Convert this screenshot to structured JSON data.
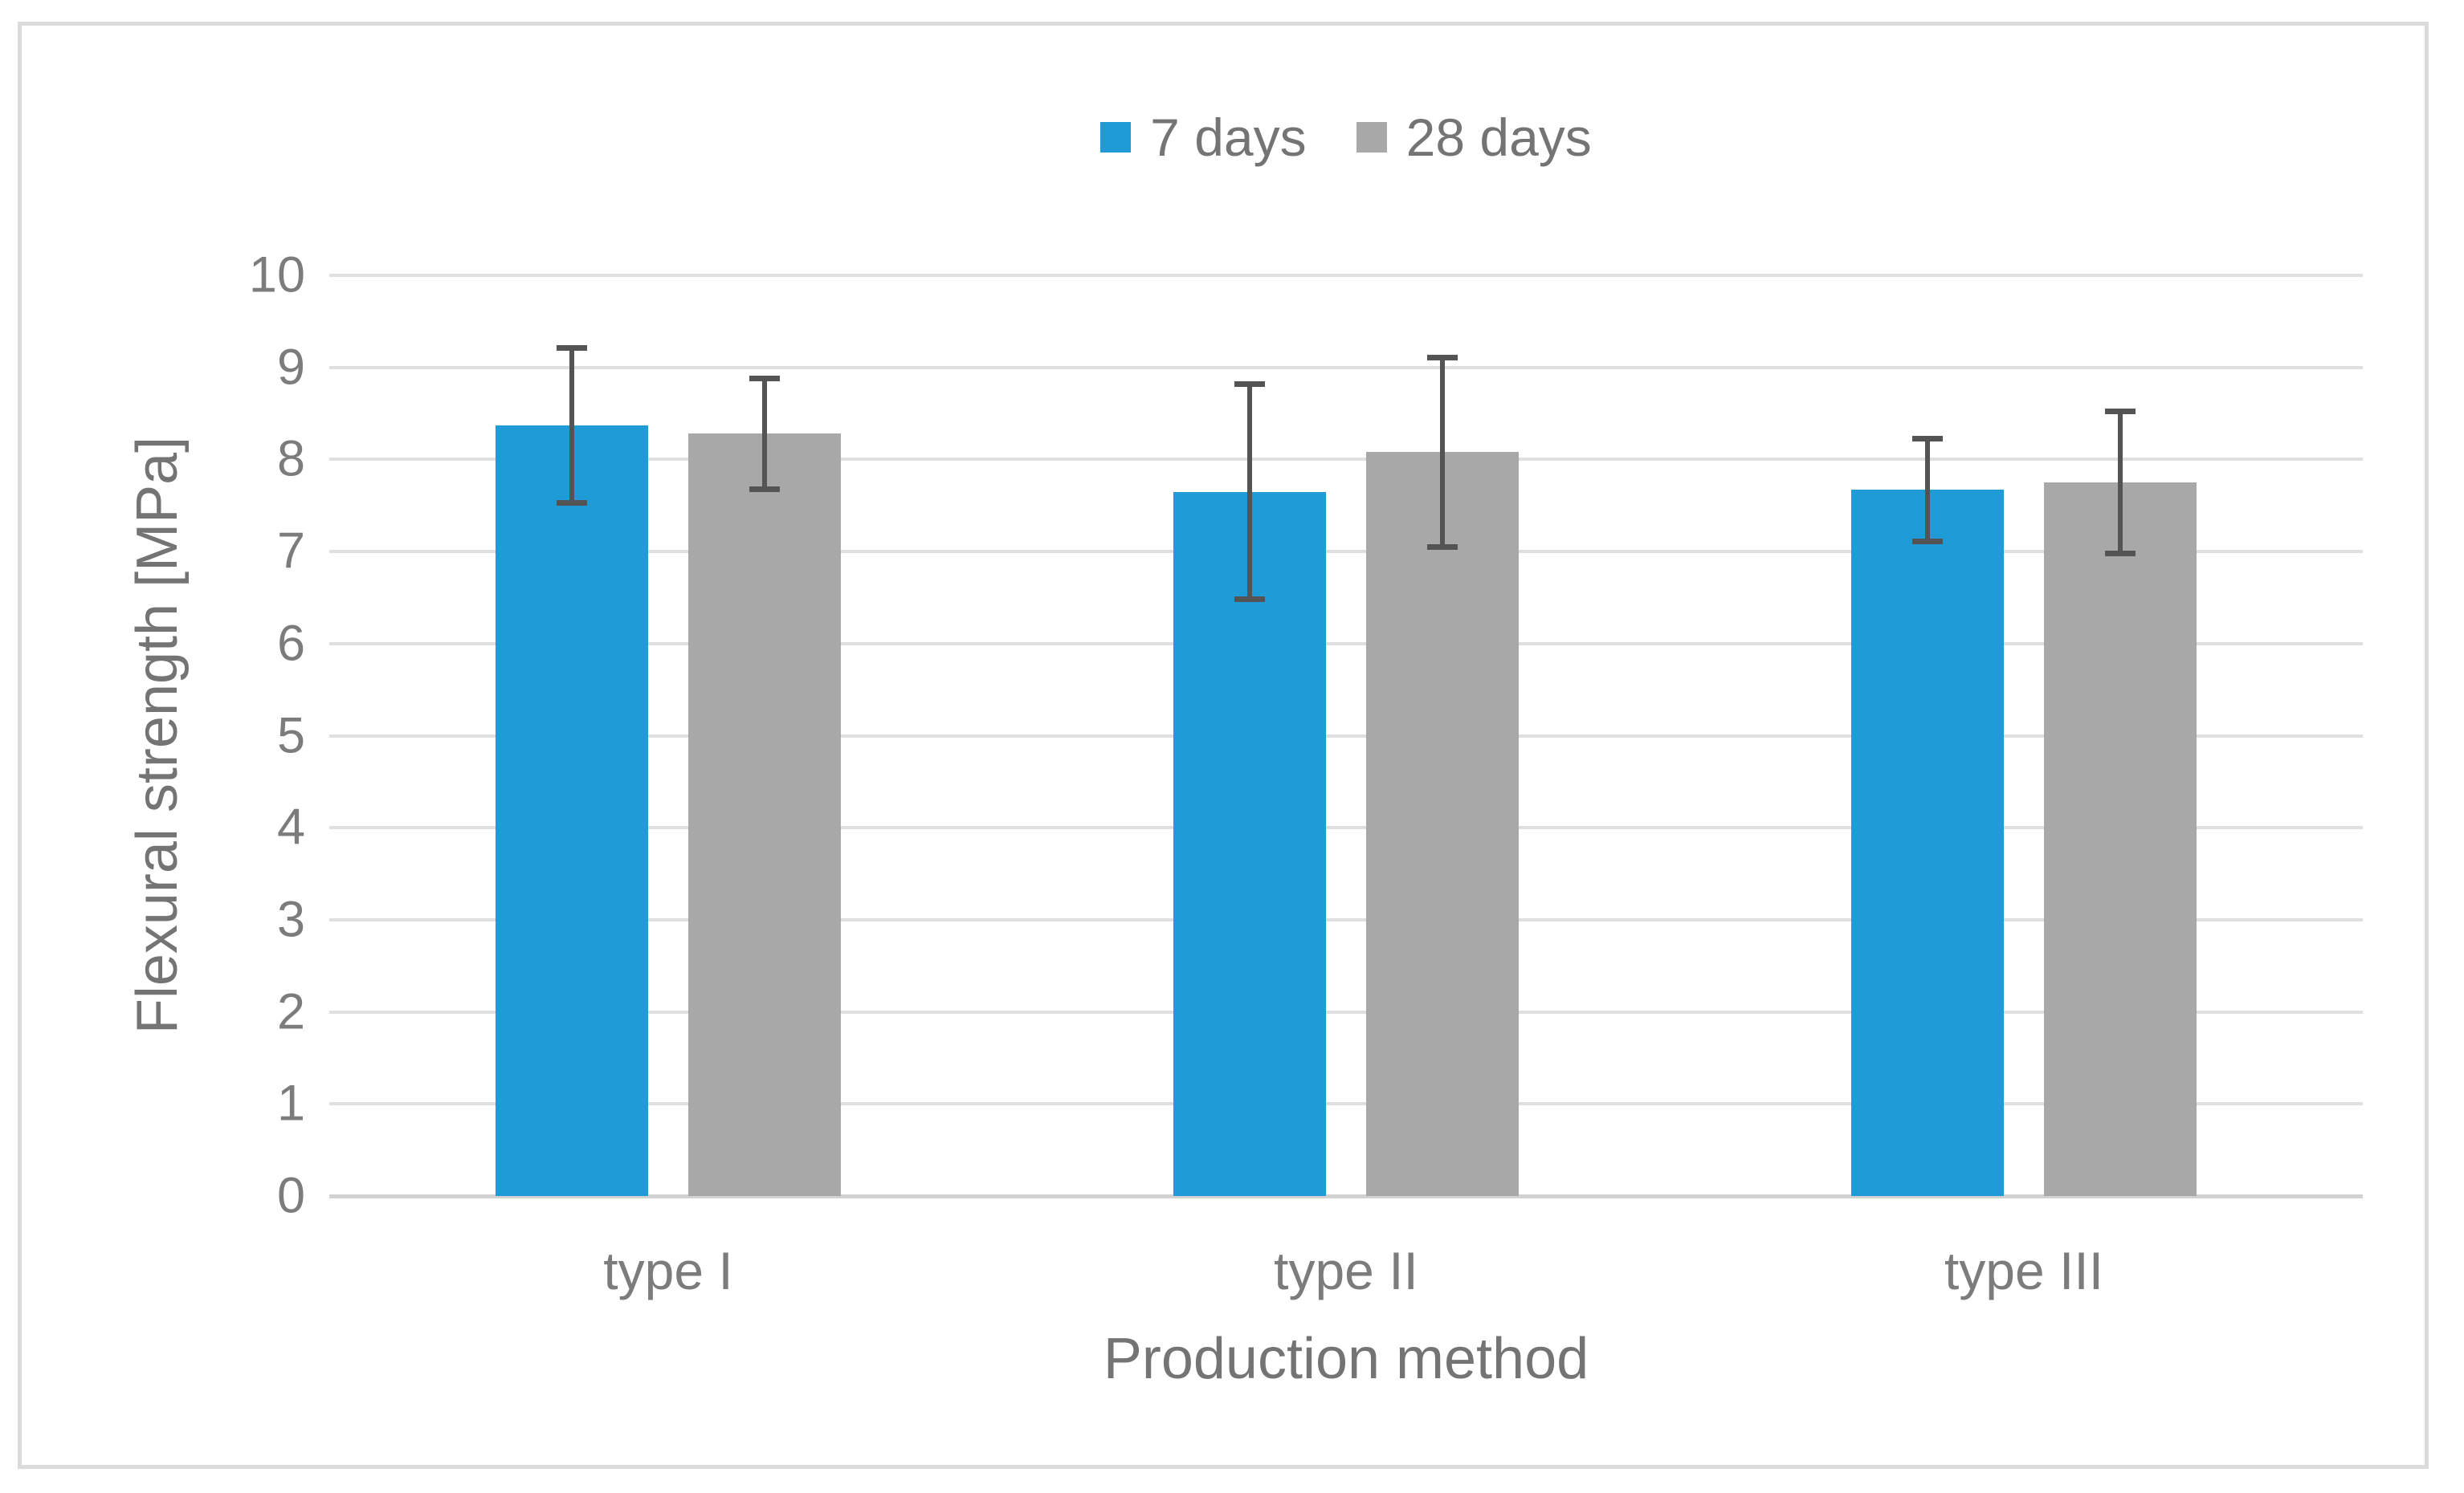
{
  "figure": {
    "background_color": "#ffffff",
    "border_color": "#dbdbdb"
  },
  "legend": {
    "position": "top-center",
    "items": [
      {
        "label": "7 days",
        "color": "#1f9cd8"
      },
      {
        "label": "28 days",
        "color": "#a8a8a8"
      }
    ]
  },
  "chart_data": {
    "type": "bar",
    "title": "",
    "xlabel": "Production method",
    "ylabel": "Flexural strength [MPa]",
    "categories": [
      "type I",
      "type II",
      "type III"
    ],
    "series": [
      {
        "name": "7 days",
        "color": "#1f9cd8",
        "values": [
          8.37,
          7.65,
          7.67
        ],
        "error_bars": [
          0.84,
          1.17,
          0.56
        ]
      },
      {
        "name": "28 days",
        "color": "#a8a8a8",
        "values": [
          8.28,
          8.08,
          7.75
        ],
        "error_bars": [
          0.6,
          1.03,
          0.77
        ]
      }
    ],
    "ylim": [
      0,
      10
    ],
    "y_ticks": [
      0,
      1,
      2,
      3,
      4,
      5,
      6,
      7,
      8,
      9,
      10
    ],
    "grid": true,
    "gridline_color": "#dfdfdf",
    "error_bar_color": "#545454",
    "legend_position": "top"
  }
}
